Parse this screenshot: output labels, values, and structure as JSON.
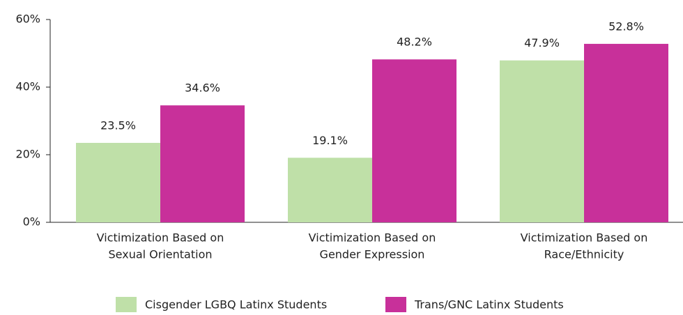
{
  "chart_data": {
    "type": "bar",
    "categories": [
      [
        "Victimization Based on",
        "Sexual Orientation"
      ],
      [
        "Victimization Based on",
        "Gender Expression"
      ],
      [
        "Victimization Based on",
        "Race/Ethnicity"
      ]
    ],
    "series": [
      {
        "name": "Cisgender LGBQ Latinx Students",
        "color": "#bfe0a8",
        "values": [
          23.5,
          19.1,
          47.9
        ],
        "value_labels": [
          "23.5%",
          "19.1%",
          "47.9%"
        ]
      },
      {
        "name": "Trans/GNC Latinx Students",
        "color": "#c8309a",
        "values": [
          34.6,
          48.2,
          52.8
        ],
        "value_labels": [
          "34.6%",
          "48.2%",
          "52.8%"
        ]
      }
    ],
    "ylim": [
      0,
      60
    ],
    "yticks": [
      {
        "value": 0,
        "label": "0%"
      },
      {
        "value": 20,
        "label": "20%"
      },
      {
        "value": 40,
        "label": "40%"
      },
      {
        "value": 60,
        "label": "60%"
      }
    ],
    "legend": "bottom"
  }
}
